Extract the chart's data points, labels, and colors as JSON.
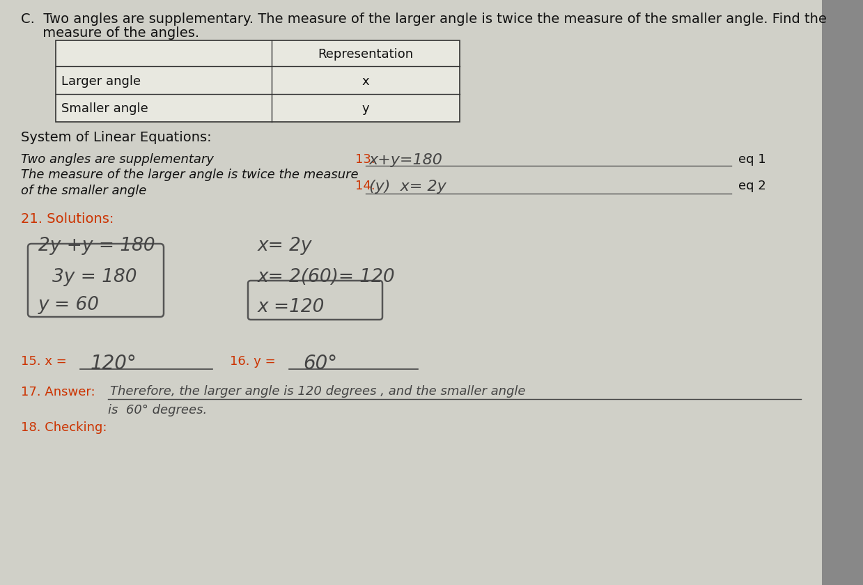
{
  "background_color": "#c8c8c8",
  "paper_color": "#d8d8d0",
  "title_line1": "C.  Two angles are supplementary. The measure of the larger angle is twice the measure of the smaller angle. Find the",
  "title_line2": "     measure of the angles.",
  "table_header": "Representation",
  "table_row1_label": "Larger angle",
  "table_row2_label": "Smaller angle",
  "table_row1_val": "x",
  "table_row2_val": "y",
  "system_label": "System of Linear Equations:",
  "left_line1": "Two angles are supplementary",
  "left_line2": "The measure of the larger angle is twice the measure",
  "left_line3": "of the smaller angle",
  "eq1_num": "13.",
  "eq1_hw": "x+y=180",
  "eq1_label": "eq 1",
  "eq2_num": "14.",
  "eq2_hw": "(y)  x= 2y",
  "eq2_label": "eq 2",
  "sol_label": "21. Solutions:",
  "sol_hw1": "2y +y = 180",
  "sol_hw2": "3y = 180",
  "sol_hw3": "y = 60",
  "sol_hw4": "x= 2y",
  "sol_hw5": "x= 2(60)= 120",
  "sol_hw6": "x =120",
  "x_label": "15. x =",
  "x_val": "120°",
  "y_label": "16. y =",
  "y_val": "60°",
  "ans_label": "17. Answer:",
  "ans_hw1": "Therefore, the larger angle is 120 degrees , and the smaller angle",
  "ans_hw2": "is  60° degrees.",
  "check_label": "18. Checking:",
  "num_color": "#cc3300",
  "hw_color": "#444444",
  "text_color": "#111111",
  "label_color": "#111111"
}
